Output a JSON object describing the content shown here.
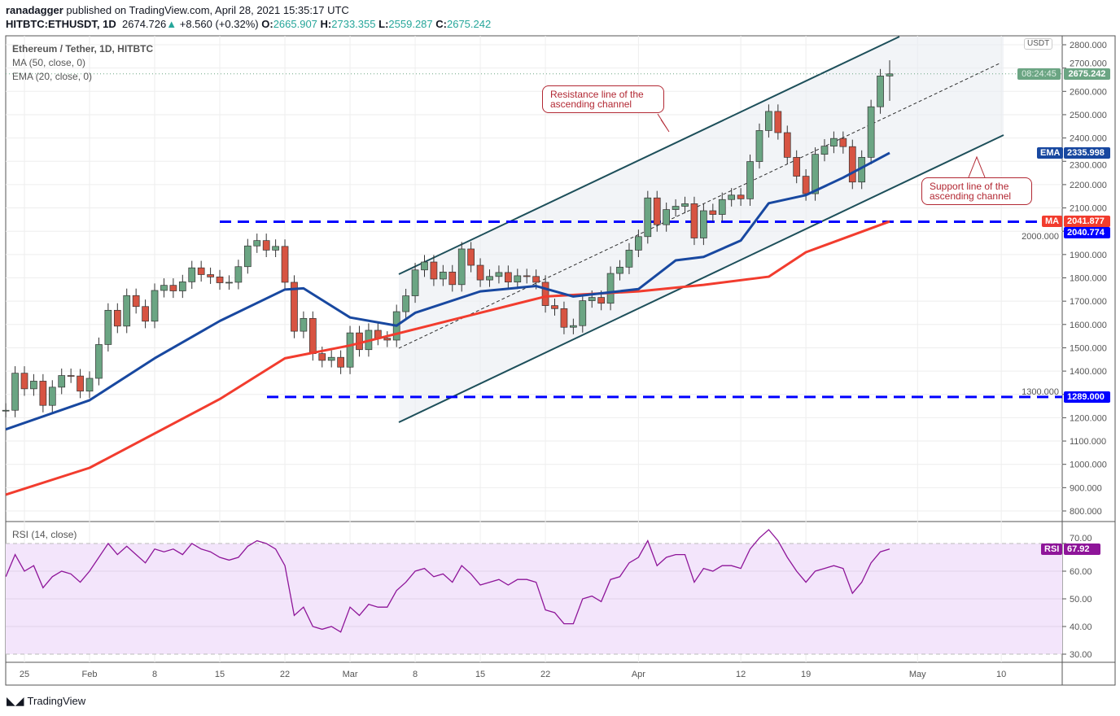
{
  "header": {
    "publisher": "ranadagger",
    "published": " published on TradingView.com, April 28, 2021 15:35:17 UTC",
    "symbol": "HITBTC:ETHUSDT, 1D",
    "last": "2674.726",
    "change": "+8.560 (+0.32%)",
    "o": "2665.907",
    "h": "2733.355",
    "l": "2559.287",
    "c": "2675.242"
  },
  "legend": {
    "title": "Ethereum / Tether, 1D, HITBTC",
    "ma": "MA (50, close, 0)",
    "ema": "EMA (20, close, 0)",
    "rsi": "RSI (14, close)"
  },
  "tags": {
    "currency": "USDT",
    "price": "2675.242",
    "countdown": "08:24:45",
    "ema_label": "EMA",
    "ema": "2335.998",
    "ma_label": "MA",
    "ma": "2041.877",
    "level1": "2040.774",
    "level2": "1289.000",
    "rsi_label": "RSI",
    "rsi": "67.92"
  },
  "annotations": {
    "resistance": "Resistance line of the ascending channel",
    "support": "Support line of the ascending channel"
  },
  "brand": "TradingView",
  "colors": {
    "up": "#6ba583",
    "down": "#d75442",
    "ema": "#1848a0",
    "ma": "#f23c2e",
    "rsi": "#8e1599",
    "level": "#0000ff"
  },
  "chart_data": {
    "type": "candlestick",
    "start_date": "2021-01-23",
    "first_open": 1230,
    "closes": [
      1232,
      1391,
      1324,
      1357,
      1253,
      1331,
      1381,
      1379,
      1314,
      1369,
      1514,
      1661,
      1593,
      1724,
      1677,
      1614,
      1746,
      1768,
      1744,
      1783,
      1843,
      1814,
      1804,
      1779,
      1781,
      1848,
      1937,
      1960,
      1919,
      1935,
      1781,
      1571,
      1626,
      1475,
      1446,
      1459,
      1417,
      1564,
      1492,
      1575,
      1541,
      1533,
      1655,
      1723,
      1834,
      1868,
      1795,
      1825,
      1771,
      1924,
      1854,
      1791,
      1806,
      1823,
      1782,
      1809,
      1806,
      1781,
      1681,
      1668,
      1588,
      1595,
      1702,
      1716,
      1691,
      1819,
      1846,
      1919,
      1977,
      2143,
      2028,
      2093,
      2107,
      2118,
      1971,
      2088,
      2072,
      2136,
      2155,
      2139,
      2299,
      2432,
      2514,
      2423,
      2317,
      2236,
      2161,
      2330,
      2365,
      2398,
      2363,
      2211,
      2317,
      2534,
      2666,
      2675
    ],
    "last_high": 2733.355,
    "last_low": 2559.287,
    "ema20": [
      [
        0,
        1150
      ],
      [
        9,
        1275
      ],
      [
        16,
        1455
      ],
      [
        23,
        1615
      ],
      [
        30,
        1750
      ],
      [
        32,
        1755
      ],
      [
        37,
        1630
      ],
      [
        42,
        1595
      ],
      [
        44,
        1650
      ],
      [
        51,
        1742
      ],
      [
        57,
        1765
      ],
      [
        61,
        1720
      ],
      [
        68,
        1752
      ],
      [
        72,
        1875
      ],
      [
        75,
        1890
      ],
      [
        79,
        1960
      ],
      [
        82,
        2120
      ],
      [
        86,
        2155
      ],
      [
        90,
        2230
      ],
      [
        95,
        2336
      ]
    ],
    "ma50": [
      [
        0,
        870
      ],
      [
        9,
        985
      ],
      [
        23,
        1280
      ],
      [
        30,
        1455
      ],
      [
        37,
        1510
      ],
      [
        44,
        1580
      ],
      [
        51,
        1650
      ],
      [
        58,
        1720
      ],
      [
        68,
        1742
      ],
      [
        75,
        1770
      ],
      [
        82,
        1805
      ],
      [
        86,
        1910
      ],
      [
        95,
        2042
      ]
    ],
    "rsi": [
      58,
      66,
      60,
      62,
      54,
      58,
      60,
      59,
      56,
      60,
      65,
      70,
      66,
      69,
      66,
      63,
      68,
      67,
      68,
      66,
      70,
      68,
      67,
      65,
      64,
      65,
      69,
      71,
      70,
      68,
      62,
      44,
      47,
      40,
      39,
      40,
      38,
      47,
      44,
      48,
      47,
      47,
      53,
      56,
      60,
      61,
      58,
      59,
      56,
      62,
      59,
      55,
      56,
      57,
      55,
      57,
      57,
      56,
      46,
      45,
      41,
      41,
      50,
      51,
      49,
      57,
      58,
      63,
      65,
      71,
      62,
      65,
      66,
      66,
      56,
      61,
      60,
      62,
      62,
      61,
      68,
      72,
      75,
      71,
      65,
      60,
      56,
      60,
      61,
      62,
      61,
      52,
      56,
      63,
      67,
      68
    ],
    "horizontal_levels": [
      2040.774,
      1289
    ],
    "price_ticks": [
      800,
      900,
      1000,
      1100,
      1200,
      1300,
      1400,
      1500,
      1600,
      1700,
      1800,
      1900,
      2000,
      2100,
      2200,
      2300,
      2400,
      2500,
      2600,
      2700,
      2800
    ],
    "rsi_ticks": [
      30,
      40,
      50,
      60,
      70
    ],
    "x_ticks": [
      {
        "i": 2,
        "label": "25"
      },
      {
        "i": 9,
        "label": "Feb"
      },
      {
        "i": 16,
        "label": "8"
      },
      {
        "i": 23,
        "label": "15"
      },
      {
        "i": 30,
        "label": "22"
      },
      {
        "i": 37,
        "label": "Mar"
      },
      {
        "i": 44,
        "label": "8"
      },
      {
        "i": 51,
        "label": "15"
      },
      {
        "i": 58,
        "label": "22"
      },
      {
        "i": 68,
        "label": "Apr"
      },
      {
        "i": 79,
        "label": "12"
      },
      {
        "i": 86,
        "label": "19"
      },
      {
        "i": 98,
        "label": "May"
      },
      {
        "i": 107,
        "label": "10"
      }
    ]
  }
}
